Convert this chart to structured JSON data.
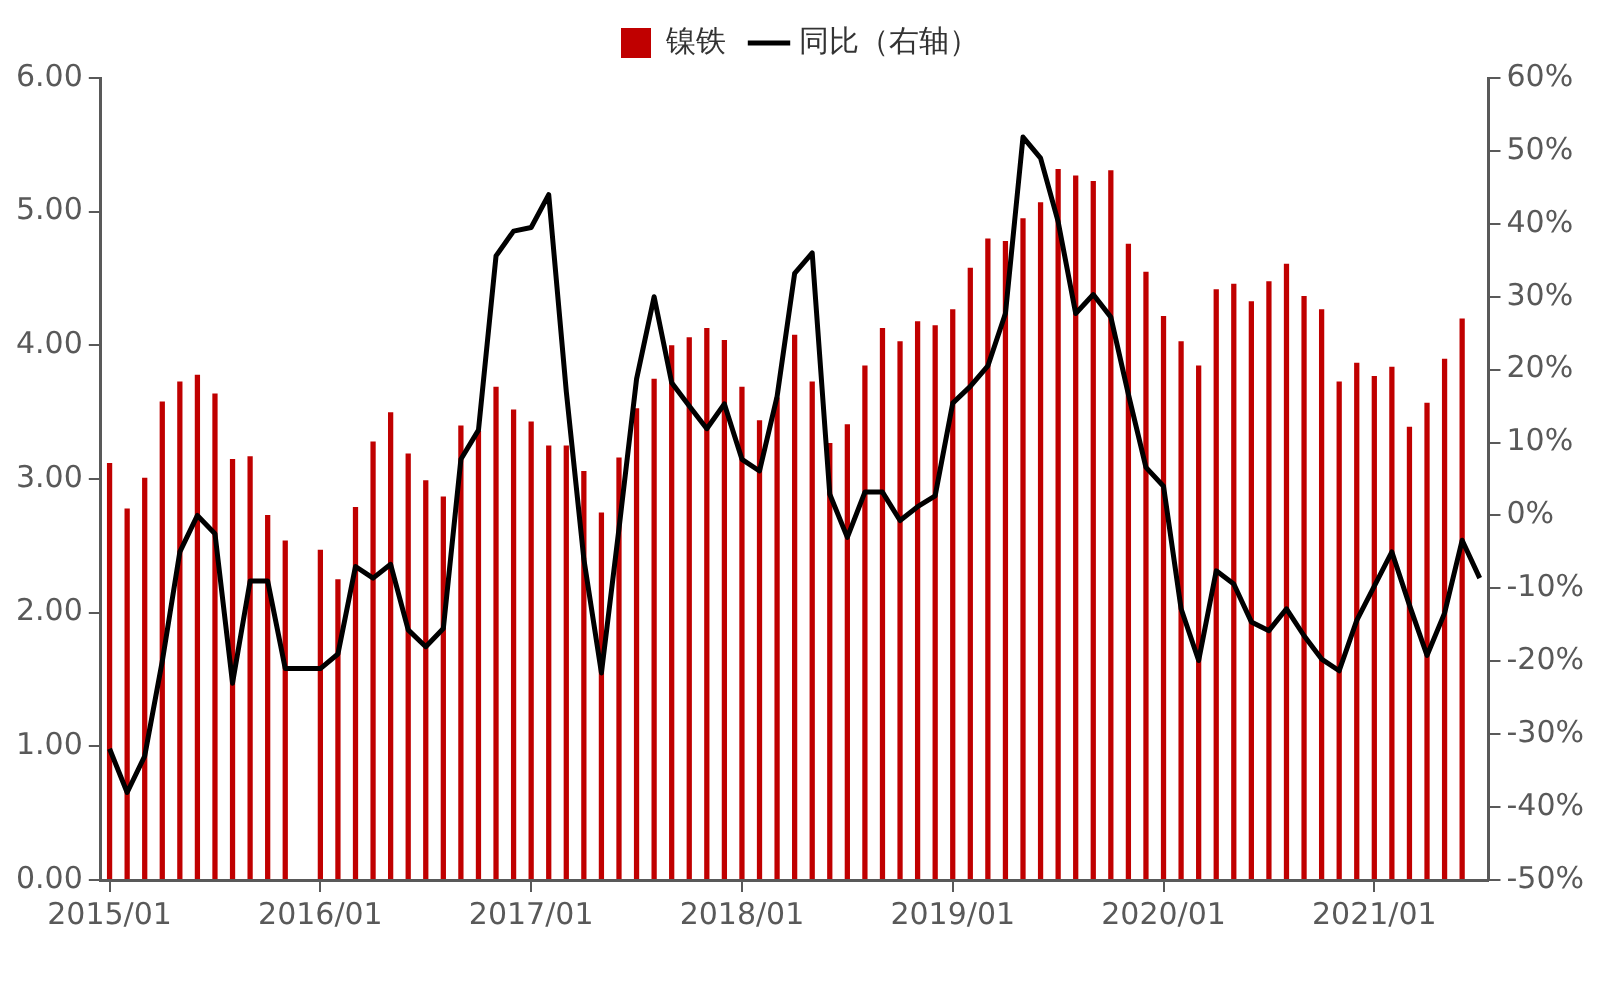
{
  "chart_data": {
    "type": "bar",
    "categories": [
      "2015/01",
      null,
      null,
      null,
      null,
      null,
      null,
      null,
      null,
      null,
      null,
      null,
      "2016/01",
      null,
      null,
      null,
      null,
      null,
      null,
      null,
      null,
      null,
      null,
      null,
      "2017/01",
      null,
      null,
      null,
      null,
      null,
      null,
      null,
      null,
      null,
      null,
      null,
      "2018/01",
      null,
      null,
      null,
      null,
      null,
      null,
      null,
      null,
      null,
      null,
      null,
      "2019/01",
      null,
      null,
      null,
      null,
      null,
      null,
      null,
      null,
      null,
      null,
      null,
      "2020/01",
      null,
      null,
      null,
      null,
      null,
      null,
      null,
      null,
      null,
      null,
      null,
      "2021/01",
      null,
      null,
      null,
      null,
      null,
      null
    ],
    "series": [
      {
        "name": "镍铁",
        "color": "#c00000",
        "values": [
          3.12,
          2.78,
          3.01,
          3.58,
          3.73,
          3.78,
          3.64,
          3.15,
          3.17,
          2.73,
          2.54,
          null,
          2.47,
          2.25,
          2.79,
          3.28,
          3.5,
          3.19,
          2.99,
          2.87,
          3.4,
          3.36,
          3.69,
          3.52,
          3.43,
          3.25,
          3.25,
          3.06,
          2.75,
          3.16,
          3.53,
          3.75,
          4.0,
          4.06,
          4.13,
          4.04,
          3.69,
          3.44,
          3.61,
          4.08,
          3.73,
          3.27,
          3.41,
          3.85,
          4.13,
          4.03,
          4.18,
          4.15,
          4.27,
          4.58,
          4.8,
          4.78,
          4.95,
          5.07,
          5.32,
          5.27,
          5.23,
          5.31,
          4.76,
          4.55,
          4.22,
          4.03,
          3.85,
          4.42,
          4.46,
          4.33,
          4.48,
          4.61,
          4.37,
          4.27,
          3.73,
          3.87,
          3.77,
          3.84,
          3.39,
          3.57,
          3.9,
          4.2,
          null
        ]
      },
      {
        "name": "同比（右轴）",
        "type": "line",
        "axis": "y2",
        "color": "#000000",
        "values": [
          -32,
          -38,
          -33,
          -20,
          -5,
          0,
          -2.5,
          -23,
          -9,
          -9,
          -21,
          -21,
          -21,
          -19,
          -7,
          -8.6,
          -6.7,
          -15.7,
          -18,
          -15.5,
          7.7,
          11.7,
          35.6,
          39,
          39.5,
          44,
          17,
          -6,
          -21.6,
          -1.8,
          18.7,
          30,
          18.2,
          15,
          11.9,
          15.3,
          7.7,
          6.1,
          16.3,
          33.2,
          36,
          2.9,
          -3,
          3.2,
          3.2,
          -0.7,
          1.2,
          2.7,
          15.4,
          17.7,
          20.5,
          27.7,
          51.9,
          49,
          40.3,
          27.7,
          30.3,
          27.2,
          16.6,
          6.6,
          4,
          -12.8,
          -19.9,
          -7.6,
          -9.4,
          -14.6,
          -15.8,
          -12.8,
          -16.5,
          -19.7,
          -21.3,
          -14.4,
          -9.7,
          -5,
          -12.3,
          -19.2,
          -13.4,
          -3.4,
          -8.6
        ]
      }
    ],
    "ylim": [
      0,
      6
    ],
    "yticks": [
      {
        "value": 0,
        "label": "0.00"
      },
      {
        "value": 1,
        "label": "1.00"
      },
      {
        "value": 2,
        "label": "2.00"
      },
      {
        "value": 3,
        "label": "3.00"
      },
      {
        "value": 4,
        "label": "4.00"
      },
      {
        "value": 5,
        "label": "5.00"
      },
      {
        "value": 6,
        "label": "6.00"
      }
    ],
    "y2lim": [
      -50,
      60
    ],
    "y2ticks": [
      {
        "value": -50,
        "label": "-50%"
      },
      {
        "value": -40,
        "label": "-40%"
      },
      {
        "value": -30,
        "label": "-30%"
      },
      {
        "value": -20,
        "label": "-20%"
      },
      {
        "value": -10,
        "label": "-10%"
      },
      {
        "value": 0,
        "label": "0%"
      },
      {
        "value": 10,
        "label": "10%"
      },
      {
        "value": 20,
        "label": "20%"
      },
      {
        "value": 30,
        "label": "30%"
      },
      {
        "value": 40,
        "label": "40%"
      },
      {
        "value": 50,
        "label": "50%"
      },
      {
        "value": 60,
        "label": "60%"
      }
    ],
    "legend": "top",
    "grid": false,
    "marker": "none",
    "line_style": "solid"
  }
}
